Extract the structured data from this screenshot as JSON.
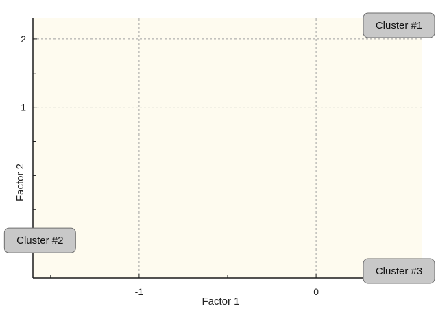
{
  "chart_data": {
    "type": "scatter",
    "xlabel": "Factor 1",
    "ylabel": "Factor 2",
    "xlim": [
      -1.6,
      0.6
    ],
    "ylim": [
      -1.5,
      2.3
    ],
    "x_ticks": [
      -1,
      0
    ],
    "x_tick_labels": [
      "-1",
      "0"
    ],
    "x_minor_ticks": [
      -1.5,
      -0.5
    ],
    "y_ticks": [
      1,
      2
    ],
    "y_tick_labels": [
      "1",
      "2"
    ],
    "y_minor_ticks": [
      -1,
      -0.5,
      0,
      0.5,
      1.5
    ],
    "grid": true,
    "points": [
      {
        "label": "Cluster #1",
        "x": 0.57,
        "y": 2.2
      },
      {
        "label": "Cluster #2",
        "x": -1.56,
        "y": -0.95
      },
      {
        "label": "Cluster #3",
        "x": 0.55,
        "y": -1.4
      }
    ]
  },
  "colors": {
    "background": "#ffffff",
    "plot_area": "#fefbef",
    "axis": "#1a1a1a",
    "grid": "#a0a0a0",
    "label_fill": "#c8c8c8",
    "label_stroke": "#6e6e6e"
  }
}
